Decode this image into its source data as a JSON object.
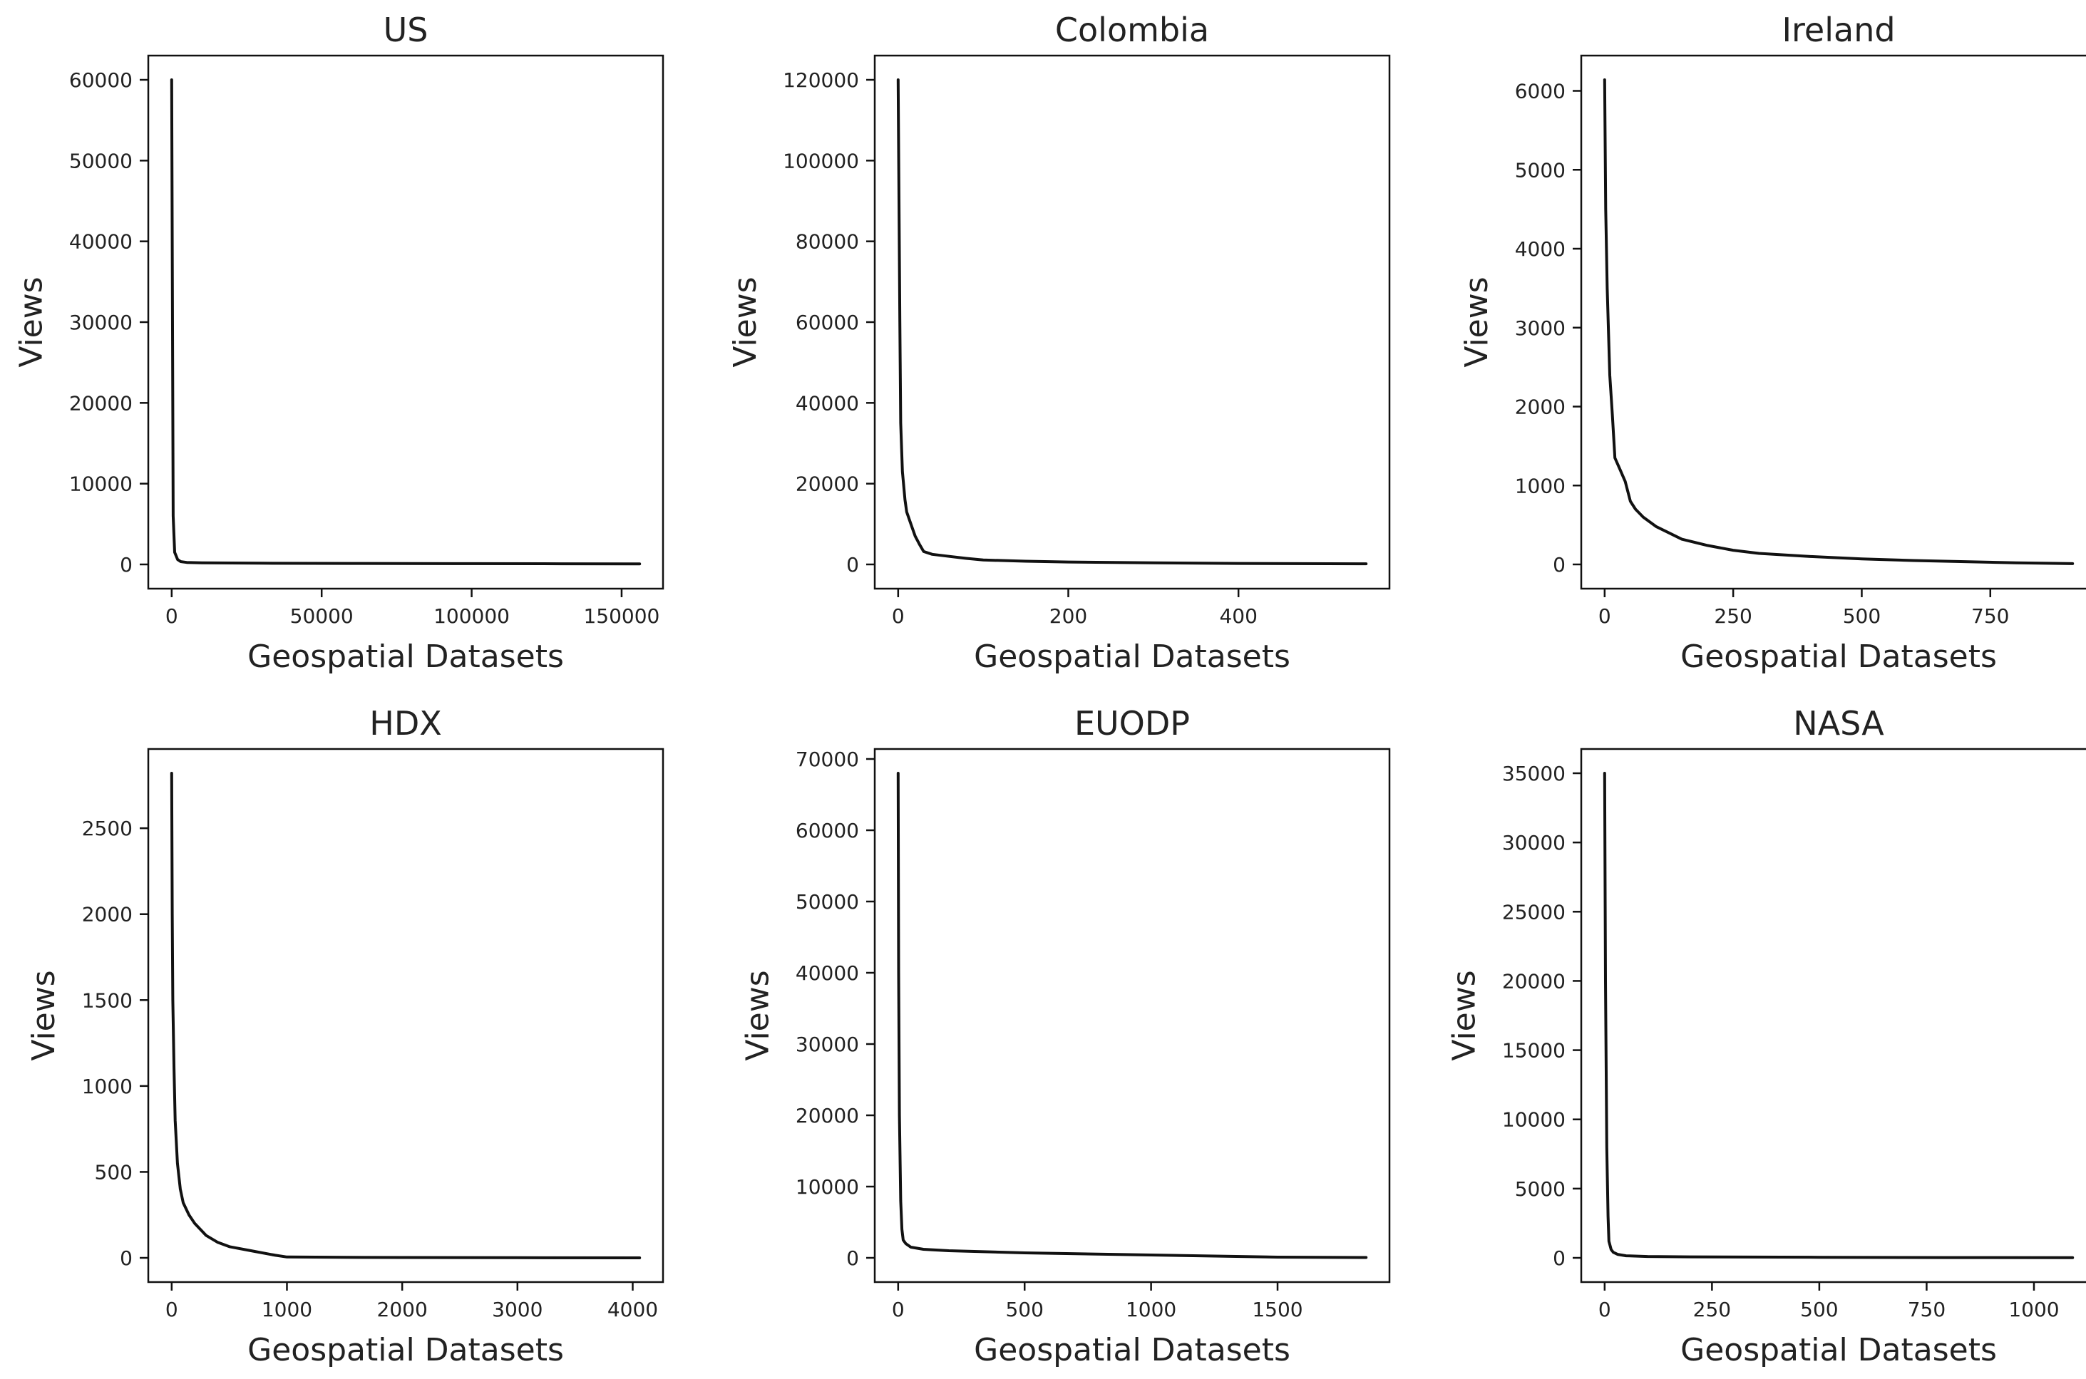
{
  "chart_data": [
    {
      "type": "line",
      "title": "US",
      "xlabel": "Geospatial Datasets",
      "ylabel": "Views",
      "xlim": [
        -7800,
        163800
      ],
      "ylim": [
        -3000,
        63000
      ],
      "xticks": [
        0,
        50000,
        100000,
        150000
      ],
      "xtick_labels": [
        "0",
        "50000",
        "100000",
        "150000"
      ],
      "yticks": [
        0,
        10000,
        20000,
        30000,
        40000,
        50000,
        60000
      ],
      "ytick_labels": [
        "0",
        "10000",
        "20000",
        "30000",
        "40000",
        "50000",
        "60000"
      ],
      "grid": false,
      "legend": "none",
      "series": [
        {
          "x": [
            0,
            500,
            1000,
            2000,
            3000,
            5000,
            10000,
            30000,
            60000,
            100000,
            130000,
            156000
          ],
          "y": [
            60000,
            6000,
            1500,
            600,
            350,
            250,
            200,
            150,
            120,
            100,
            80,
            60
          ]
        }
      ]
    },
    {
      "type": "line",
      "title": "Colombia",
      "xlabel": "Geospatial Datasets",
      "ylabel": "Views",
      "xlim": [
        -27.5,
        577.5
      ],
      "ylim": [
        -6000,
        126000
      ],
      "xticks": [
        0,
        200,
        400
      ],
      "xtick_labels": [
        "0",
        "200",
        "400"
      ],
      "yticks": [
        0,
        20000,
        40000,
        60000,
        80000,
        100000,
        120000
      ],
      "ytick_labels": [
        "0",
        "20000",
        "40000",
        "60000",
        "80000",
        "100000",
        "120000"
      ],
      "grid": false,
      "legend": "none",
      "series": [
        {
          "x": [
            0,
            1,
            2,
            3,
            5,
            8,
            10,
            15,
            20,
            25,
            30,
            40,
            60,
            80,
            100,
            150,
            200,
            300,
            400,
            550
          ],
          "y": [
            120000,
            90000,
            60000,
            35000,
            23000,
            16000,
            13000,
            10000,
            7000,
            5000,
            3200,
            2500,
            2000,
            1500,
            1100,
            800,
            600,
            400,
            250,
            150
          ]
        }
      ]
    },
    {
      "type": "line",
      "title": "Ireland",
      "xlabel": "Geospatial Datasets",
      "ylabel": "Views",
      "xlim": [
        -45.5,
        955.5
      ],
      "ylim": [
        -307,
        6447
      ],
      "xticks": [
        0,
        250,
        500,
        750
      ],
      "xtick_labels": [
        "0",
        "250",
        "500",
        "750"
      ],
      "yticks": [
        0,
        1000,
        2000,
        3000,
        4000,
        5000,
        6000
      ],
      "ytick_labels": [
        "0",
        "1000",
        "2000",
        "3000",
        "4000",
        "5000",
        "6000"
      ],
      "grid": false,
      "legend": "none",
      "series": [
        {
          "x": [
            0,
            2,
            5,
            10,
            15,
            20,
            30,
            40,
            50,
            60,
            75,
            100,
            125,
            150,
            200,
            250,
            300,
            400,
            500,
            600,
            700,
            800,
            910
          ],
          "y": [
            6140,
            4500,
            3500,
            2400,
            1900,
            1350,
            1200,
            1050,
            800,
            700,
            600,
            480,
            400,
            320,
            240,
            180,
            140,
            100,
            70,
            50,
            35,
            20,
            10
          ]
        }
      ]
    },
    {
      "type": "line",
      "title": "HDX",
      "xlabel": "Geospatial Datasets",
      "ylabel": "Views",
      "xlim": [
        -203,
        4263
      ],
      "ylim": [
        -141,
        2961
      ],
      "xticks": [
        0,
        1000,
        2000,
        3000,
        4000
      ],
      "xtick_labels": [
        "0",
        "1000",
        "2000",
        "3000",
        "4000"
      ],
      "yticks": [
        0,
        500,
        1000,
        1500,
        2000,
        2500
      ],
      "ytick_labels": [
        "0",
        "500",
        "1000",
        "1500",
        "2000",
        "2500"
      ],
      "grid": false,
      "legend": "none",
      "series": [
        {
          "x": [
            0,
            5,
            10,
            20,
            30,
            50,
            75,
            100,
            150,
            200,
            300,
            400,
            500,
            700,
            900,
            1000,
            1500,
            2000,
            3000,
            4060
          ],
          "y": [
            2820,
            2000,
            1500,
            1100,
            800,
            550,
            400,
            320,
            250,
            200,
            130,
            90,
            65,
            40,
            15,
            5,
            3,
            2,
            1,
            0
          ]
        }
      ]
    },
    {
      "type": "line",
      "title": "EUODP",
      "xlabel": "Geospatial Datasets",
      "ylabel": "Views",
      "xlim": [
        -92.5,
        1942.5
      ],
      "ylim": [
        -3400,
        71400
      ],
      "xticks": [
        0,
        500,
        1000,
        1500
      ],
      "xtick_labels": [
        "0",
        "500",
        "1000",
        "1500"
      ],
      "yticks": [
        0,
        10000,
        20000,
        30000,
        40000,
        50000,
        60000,
        70000
      ],
      "ytick_labels": [
        "0",
        "10000",
        "20000",
        "30000",
        "40000",
        "50000",
        "60000",
        "70000"
      ],
      "grid": false,
      "legend": "none",
      "series": [
        {
          "x": [
            0,
            2,
            5,
            10,
            15,
            20,
            30,
            50,
            100,
            200,
            500,
            1000,
            1500,
            1850
          ],
          "y": [
            68000,
            40000,
            20000,
            8000,
            4000,
            2500,
            2000,
            1500,
            1200,
            1000,
            700,
            400,
            100,
            50
          ]
        }
      ]
    },
    {
      "type": "line",
      "title": "NASA",
      "xlabel": "Geospatial Datasets",
      "ylabel": "Views",
      "xlim": [
        -54.5,
        1144.5
      ],
      "ylim": [
        -1750,
        36750
      ],
      "xticks": [
        0,
        250,
        500,
        750,
        1000
      ],
      "xtick_labels": [
        "0",
        "250",
        "500",
        "750",
        "1000"
      ],
      "yticks": [
        0,
        5000,
        10000,
        15000,
        20000,
        25000,
        30000,
        35000
      ],
      "ytick_labels": [
        "0",
        "5000",
        "10000",
        "15000",
        "20000",
        "25000",
        "30000",
        "35000"
      ],
      "grid": false,
      "legend": "none",
      "series": [
        {
          "x": [
            0,
            2,
            5,
            8,
            10,
            15,
            20,
            30,
            50,
            100,
            200,
            500,
            800,
            1090
          ],
          "y": [
            35000,
            20000,
            8000,
            3000,
            1200,
            600,
            400,
            250,
            150,
            100,
            70,
            40,
            20,
            10
          ]
        }
      ]
    }
  ]
}
